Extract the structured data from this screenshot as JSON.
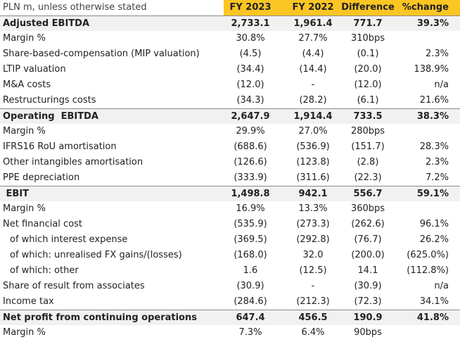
{
  "header": {
    "unit_note": "PLN m, unless otherwise stated",
    "columns": [
      "FY 2023",
      "FY 2022",
      "Difference",
      "%change"
    ]
  },
  "rows": [
    {
      "label": "Adjusted EBITDA",
      "values": [
        "2,733.1",
        "1,961.4",
        "771.7",
        "39.3%"
      ],
      "total": true
    },
    {
      "label": "Margin %",
      "values": [
        "30.8%",
        "27.7%",
        "310bps",
        null
      ]
    },
    {
      "label": "Share-based-compensation (MIP valuation)",
      "values": [
        "(4.5)",
        "(4.4)",
        "(0.1)",
        "2.3%"
      ]
    },
    {
      "label": "LTIP valuation",
      "values": [
        "(34.4)",
        "(14.4)",
        "(20.0)",
        "138.9%"
      ]
    },
    {
      "label": "M&A costs",
      "values": [
        "(12.0)",
        "-",
        "(12.0)",
        "n/a"
      ]
    },
    {
      "label": "Restructurings costs",
      "values": [
        "(34.3)",
        "(28.2)",
        "(6.1)",
        "21.6%"
      ]
    },
    {
      "label": "Operating  EBITDA",
      "values": [
        "2,647.9",
        "1,914.4",
        "733.5",
        "38.3%"
      ],
      "total": true
    },
    {
      "label": "Margin %",
      "values": [
        "29.9%",
        "27.0%",
        "280bps",
        null
      ]
    },
    {
      "label": "IFRS16 RoU amortisation",
      "values": [
        "(688.6)",
        "(536.9)",
        "(151.7)",
        "28.3%"
      ]
    },
    {
      "label": "Other intangibles amortisation",
      "values": [
        "(126.6)",
        "(123.8)",
        "(2.8)",
        "2.3%"
      ]
    },
    {
      "label": "PPE depreciation",
      "values": [
        "(333.9)",
        "(311.6)",
        "(22.3)",
        "7.2%"
      ]
    },
    {
      "label": " EBIT",
      "values": [
        "1,498.8",
        "942.1",
        "556.7",
        "59.1%"
      ],
      "total": true
    },
    {
      "label": "Margin %",
      "values": [
        "16.9%",
        "13.3%",
        "360bps",
        null
      ]
    },
    {
      "label": "Net financial cost",
      "values": [
        "(535.9)",
        "(273.3)",
        "(262.6)",
        "96.1%"
      ]
    },
    {
      "label": "of which interest expense",
      "values": [
        "(369.5)",
        "(292.8)",
        "(76.7)",
        "26.2%"
      ],
      "indent": true
    },
    {
      "label": "of which: unrealised FX gains/(losses)",
      "values": [
        "(168.0)",
        "32.0",
        "(200.0)",
        "(625.0%)"
      ],
      "indent": true
    },
    {
      "label": "of which: other",
      "values": [
        "1.6",
        "(12.5)",
        "14.1",
        "(112.8%)"
      ],
      "indent": true
    },
    {
      "label": "Share of result from associates",
      "values": [
        "(30.9)",
        "-",
        "(30.9)",
        "n/a"
      ]
    },
    {
      "label": "Income tax",
      "values": [
        "(284.6)",
        "(212.3)",
        "(72.3)",
        "34.1%"
      ]
    },
    {
      "label": "Net profit from continuing operations",
      "values": [
        "647.4",
        "456.5",
        "190.9",
        "41.8%"
      ],
      "total": true
    },
    {
      "label": "Margin %",
      "values": [
        "7.3%",
        "6.4%",
        "90bps",
        null
      ]
    }
  ]
}
